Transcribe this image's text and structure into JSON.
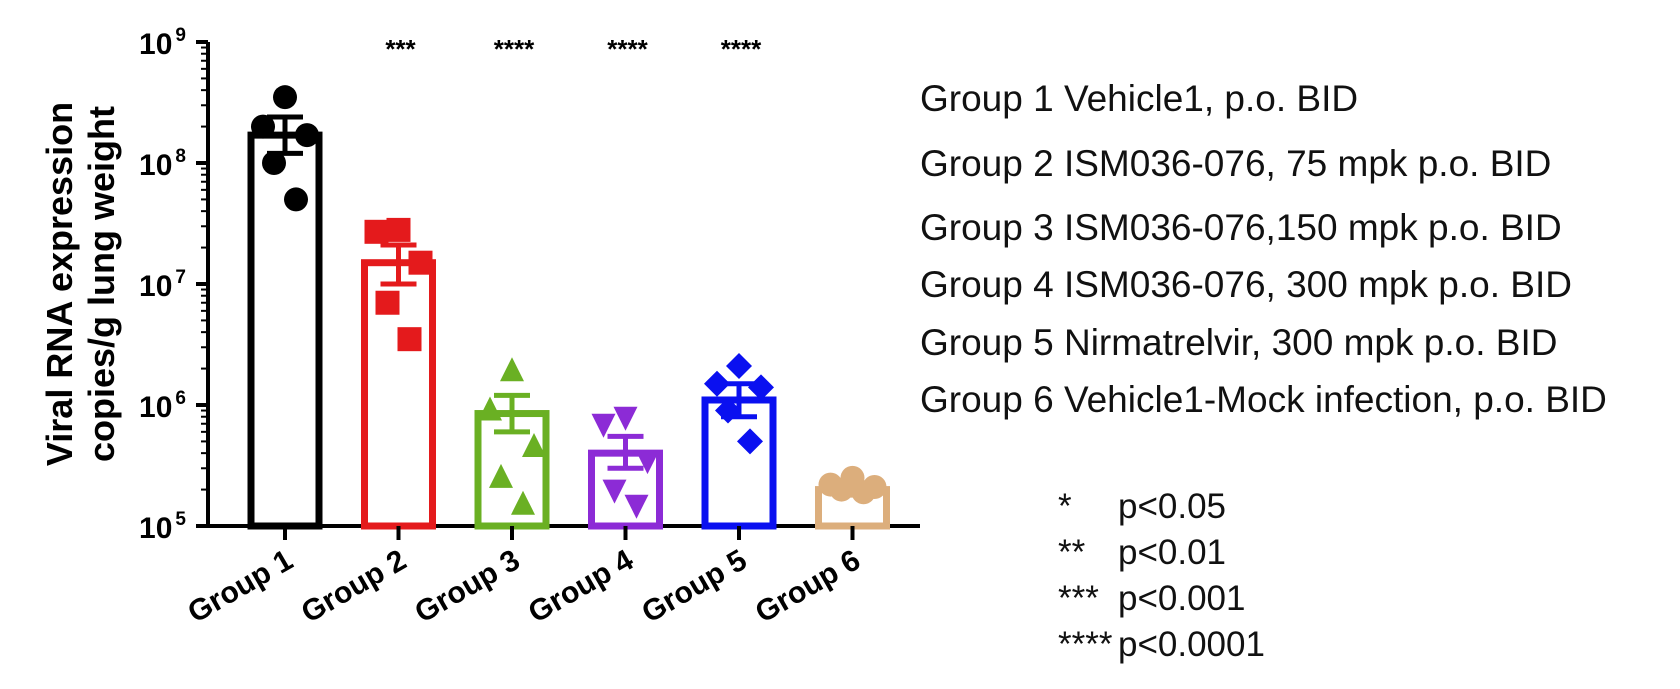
{
  "chart_data": {
    "type": "bar",
    "yscale": "log",
    "ylim": [
      100000,
      1000000000
    ],
    "ylabel": "Viral RNA expression copies/g lung weight",
    "ylabel_lines": [
      "Viral RNA expression",
      "copies/g lung weight"
    ],
    "yticks": [
      {
        "base": "10",
        "exp": "9",
        "value": 1000000000
      },
      {
        "base": "10",
        "exp": "8",
        "value": 100000000
      },
      {
        "base": "10",
        "exp": "7",
        "value": 10000000
      },
      {
        "base": "10",
        "exp": "6",
        "value": 1000000
      },
      {
        "base": "10",
        "exp": "5",
        "value": 100000
      }
    ],
    "categories": [
      "Group 1",
      "Group 2",
      "Group 3",
      "Group 4",
      "Group 5",
      "Group 6"
    ],
    "series": [
      {
        "name": "Group 1",
        "color": "#000000",
        "marker": "circle",
        "mean": 170000000,
        "sem_low": 120000000,
        "sem_high": 240000000,
        "points": [
          350000000,
          200000000,
          170000000,
          100000000,
          50000000
        ],
        "significance": ""
      },
      {
        "name": "Group 2",
        "color": "#e41a1c",
        "marker": "square",
        "mean": 15000000,
        "sem_low": 10000000,
        "sem_high": 21000000,
        "points": [
          28000000,
          27000000,
          15000000,
          7000000,
          3500000
        ],
        "significance": "***"
      },
      {
        "name": "Group 3",
        "color": "#6ab023",
        "marker": "triangle-up",
        "mean": 850000,
        "sem_low": 600000,
        "sem_high": 1200000,
        "points": [
          1900000,
          900000,
          450000,
          250000,
          150000
        ],
        "significance": "****"
      },
      {
        "name": "Group 4",
        "color": "#8c2bd6",
        "marker": "triangle-down",
        "mean": 400000,
        "sem_low": 300000,
        "sem_high": 550000,
        "points": [
          800000,
          700000,
          350000,
          200000,
          150000
        ],
        "significance": "****"
      },
      {
        "name": "Group 5",
        "color": "#0a10f0",
        "marker": "diamond",
        "mean": 1100000,
        "sem_low": 800000,
        "sem_high": 1500000,
        "points": [
          2100000,
          1500000,
          1400000,
          900000,
          500000
        ],
        "significance": "****"
      },
      {
        "name": "Group 6",
        "color": "#dcae7c",
        "marker": "circle",
        "mean": 200000,
        "sem_low": 180000,
        "sem_high": 220000,
        "points": [
          250000,
          220000,
          210000,
          200000,
          190000
        ],
        "significance": ""
      }
    ]
  },
  "legend": [
    "Group 1 Vehicle1, p.o. BID",
    "Group 2 ISM036-076, 75 mpk p.o. BID",
    "Group 3 ISM036-076,150 mpk p.o. BID",
    "Group 4 ISM036-076, 300 mpk p.o. BID",
    "Group 5 Nirmatrelvir, 300 mpk p.o. BID",
    "Group 6 Vehicle1-Mock infection, p.o. BID"
  ],
  "significance_key": [
    {
      "stars": "*",
      "label": "p<0.05"
    },
    {
      "stars": "**",
      "label": "p<0.01"
    },
    {
      "stars": "***",
      "label": "p<0.001"
    },
    {
      "stars": "****",
      "label": "p<0.0001"
    }
  ]
}
